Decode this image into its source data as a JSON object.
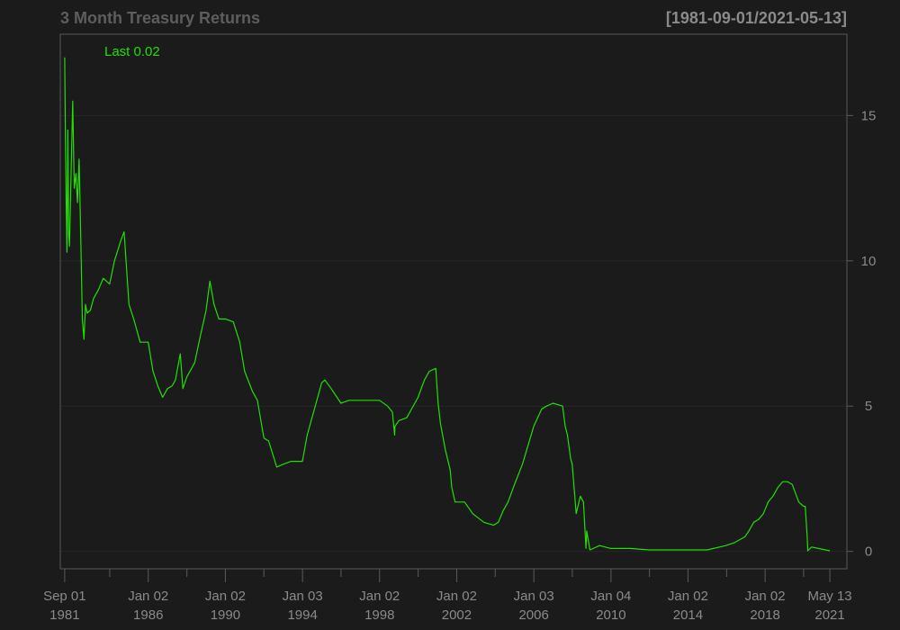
{
  "chart_data": {
    "type": "line",
    "title": "3 Month Treasury Returns",
    "date_range_label": "[1981-09-01/2021-05-13]",
    "last_label": "Last 0.02",
    "series_color": "#22e000",
    "background_color": "#1b1b1b",
    "ylim": [
      -0.6,
      17.8
    ],
    "y_ticks": [
      0,
      5,
      10,
      15
    ],
    "y_tick_labels": [
      "0",
      "5",
      "10",
      "15"
    ],
    "xlim": [
      "1981-06-10",
      "2022-04-01"
    ],
    "grid": true,
    "x_labels": [
      {
        "date": "1981-09-01",
        "line1": "Sep 01",
        "line2": "1981"
      },
      {
        "date": "1986-01-02",
        "line1": "Jan 02",
        "line2": "1986"
      },
      {
        "date": "1990-01-02",
        "line1": "Jan 02",
        "line2": "1990"
      },
      {
        "date": "1994-01-03",
        "line1": "Jan 03",
        "line2": "1994"
      },
      {
        "date": "1998-01-02",
        "line1": "Jan 02",
        "line2": "1998"
      },
      {
        "date": "2002-01-02",
        "line1": "Jan 02",
        "line2": "2002"
      },
      {
        "date": "2006-01-03",
        "line1": "Jan 03",
        "line2": "2006"
      },
      {
        "date": "2010-01-04",
        "line1": "Jan 04",
        "line2": "2010"
      },
      {
        "date": "2014-01-02",
        "line1": "Jan 02",
        "line2": "2014"
      },
      {
        "date": "2018-01-02",
        "line1": "Jan 02",
        "line2": "2018"
      },
      {
        "date": "2021-05-13",
        "line1": "May 13",
        "line2": "2021"
      }
    ],
    "minor_ticks": [
      "1984-01-03",
      "1988-01-04",
      "1992-01-02",
      "1996-01-02",
      "2000-01-03",
      "2004-01-02",
      "2008-01-02",
      "2012-01-03",
      "2016-01-04",
      "2020-01-02"
    ],
    "series": [
      {
        "x": [
          "1981-09-01",
          "1981-09-15",
          "1981-10-01",
          "1981-10-15",
          "1981-11-01",
          "1981-11-15",
          "1981-12-01",
          "1982-01-01",
          "1982-02-01",
          "1982-03-01",
          "1982-04-01",
          "1982-05-01",
          "1982-06-01",
          "1982-07-01",
          "1982-08-01",
          "1982-09-01",
          "1982-10-01",
          "1982-11-01",
          "1983-01-01",
          "1983-03-01",
          "1983-06-01",
          "1983-09-01",
          "1984-01-01",
          "1984-04-01",
          "1984-08-01",
          "1984-10-01",
          "1985-01-01",
          "1985-04-01",
          "1985-08-01",
          "1986-01-01",
          "1986-04-01",
          "1986-07-01",
          "1986-10-01",
          "1987-01-01",
          "1987-04-01",
          "1987-06-01",
          "1987-09-01",
          "1987-10-20",
          "1988-01-01",
          "1988-06-01",
          "1988-09-01",
          "1989-01-01",
          "1989-03-15",
          "1989-06-01",
          "1989-09-01",
          "1990-01-01",
          "1990-06-01",
          "1990-10-01",
          "1991-01-01",
          "1991-06-01",
          "1991-09-01",
          "1992-01-01",
          "1992-04-01",
          "1992-09-01",
          "1993-01-01",
          "1993-06-01",
          "1994-01-01",
          "1994-04-01",
          "1994-08-01",
          "1995-01-01",
          "1995-03-01",
          "1995-07-01",
          "1996-01-01",
          "1996-06-01",
          "1997-01-01",
          "1997-06-01",
          "1998-01-01",
          "1998-06-01",
          "1998-09-01",
          "1998-10-15",
          "1998-10-20",
          "1999-01-01",
          "1999-06-01",
          "2000-01-01",
          "2000-05-01",
          "2000-08-01",
          "2000-12-01",
          "2001-01-15",
          "2001-03-01",
          "2001-06-01",
          "2001-09-01",
          "2001-10-01",
          "2001-12-01",
          "2002-06-01",
          "2002-11-01",
          "2003-06-01",
          "2003-12-01",
          "2004-03-01",
          "2004-06-01",
          "2004-09-01",
          "2005-01-01",
          "2005-06-01",
          "2006-01-01",
          "2006-06-01",
          "2006-09-01",
          "2007-01-01",
          "2007-07-01",
          "2007-08-20",
          "2007-10-01",
          "2007-12-01",
          "2008-01-01",
          "2008-03-15",
          "2008-06-01",
          "2008-08-01",
          "2008-09-17",
          "2008-10-01",
          "2008-12-01",
          "2009-06-01",
          "2010-01-01",
          "2011-01-01",
          "2012-01-01",
          "2013-01-01",
          "2014-01-01",
          "2015-01-01",
          "2015-12-20",
          "2016-06-01",
          "2016-12-15",
          "2017-03-01",
          "2017-06-01",
          "2017-09-01",
          "2017-12-01",
          "2018-03-01",
          "2018-06-01",
          "2018-09-01",
          "2018-12-01",
          "2019-03-01",
          "2019-06-01",
          "2019-08-01",
          "2019-10-01",
          "2020-01-01",
          "2020-02-01",
          "2020-03-10",
          "2020-03-20",
          "2020-06-01",
          "2020-12-01",
          "2021-05-13"
        ],
        "y": [
          17.0,
          14.2,
          12.0,
          10.3,
          14.5,
          11.0,
          10.5,
          13.0,
          15.5,
          12.5,
          13.0,
          12.0,
          13.5,
          11.0,
          8.0,
          7.3,
          8.5,
          8.2,
          8.3,
          8.7,
          9.0,
          9.4,
          9.2,
          10.0,
          10.7,
          11.0,
          8.5,
          8.0,
          7.2,
          7.2,
          6.2,
          5.7,
          5.3,
          5.6,
          5.7,
          5.9,
          6.8,
          5.6,
          6.0,
          6.5,
          7.3,
          8.3,
          9.3,
          8.5,
          8.0,
          8.0,
          7.9,
          7.2,
          6.2,
          5.5,
          5.2,
          3.9,
          3.8,
          2.9,
          3.0,
          3.1,
          3.1,
          4.0,
          4.8,
          5.8,
          5.9,
          5.6,
          5.1,
          5.2,
          5.2,
          5.2,
          5.2,
          5.0,
          4.8,
          4.0,
          4.3,
          4.5,
          4.6,
          5.3,
          5.9,
          6.2,
          6.3,
          5.1,
          4.4,
          3.5,
          2.8,
          2.2,
          1.7,
          1.7,
          1.3,
          1.0,
          0.9,
          1.0,
          1.4,
          1.7,
          2.3,
          3.0,
          4.3,
          4.9,
          5.0,
          5.1,
          5.0,
          4.3,
          4.0,
          3.2,
          3.0,
          1.3,
          1.9,
          1.7,
          0.1,
          0.7,
          0.05,
          0.2,
          0.1,
          0.1,
          0.05,
          0.05,
          0.05,
          0.05,
          0.2,
          0.3,
          0.5,
          0.7,
          1.0,
          1.1,
          1.3,
          1.7,
          1.9,
          2.2,
          2.4,
          2.4,
          2.3,
          2.0,
          1.7,
          1.55,
          1.55,
          0.5,
          0.02,
          0.15,
          0.08,
          0.02
        ]
      }
    ]
  }
}
